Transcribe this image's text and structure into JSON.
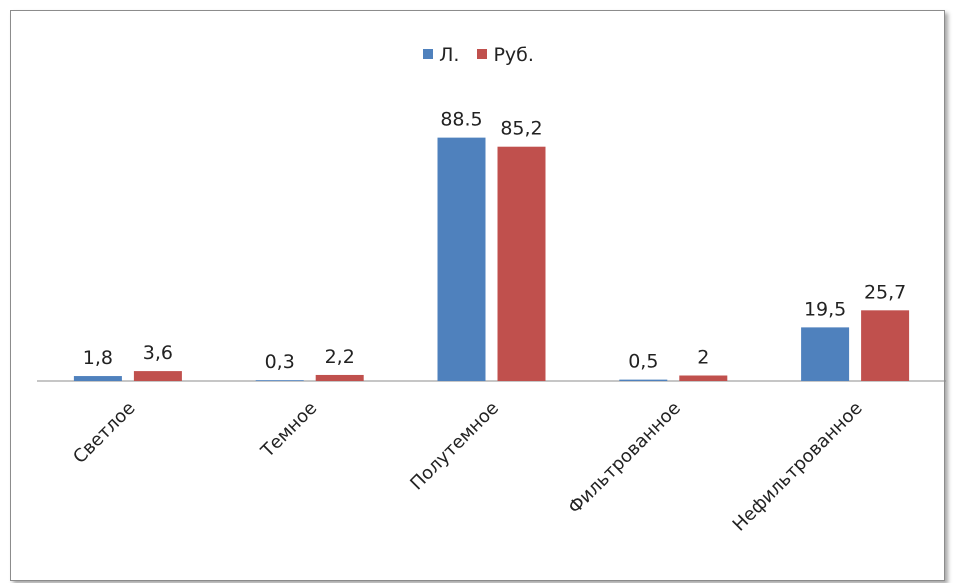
{
  "chart_data": {
    "type": "bar",
    "title": "",
    "xlabel": "",
    "ylabel": "",
    "categories": [
      "Светлое",
      "Темное",
      "Полутемное",
      "Фильтрованное",
      "Нефильтрованное"
    ],
    "series": [
      {
        "name": "Л.",
        "color": "#4f81bd",
        "values": [
          1.8,
          0.3,
          88.5,
          0.5,
          19.5
        ],
        "labels": [
          "1,8",
          "0,3",
          "88.5",
          "0,5",
          "19,5"
        ]
      },
      {
        "name": "Руб.",
        "color": "#c0504d",
        "values": [
          3.6,
          2.2,
          85.2,
          2,
          25.7
        ],
        "labels": [
          "3,6",
          "2,2",
          "85,2",
          "2",
          "25,7"
        ]
      }
    ],
    "ylim": [
      0,
      100
    ],
    "grid": false,
    "legend_position": "top"
  }
}
